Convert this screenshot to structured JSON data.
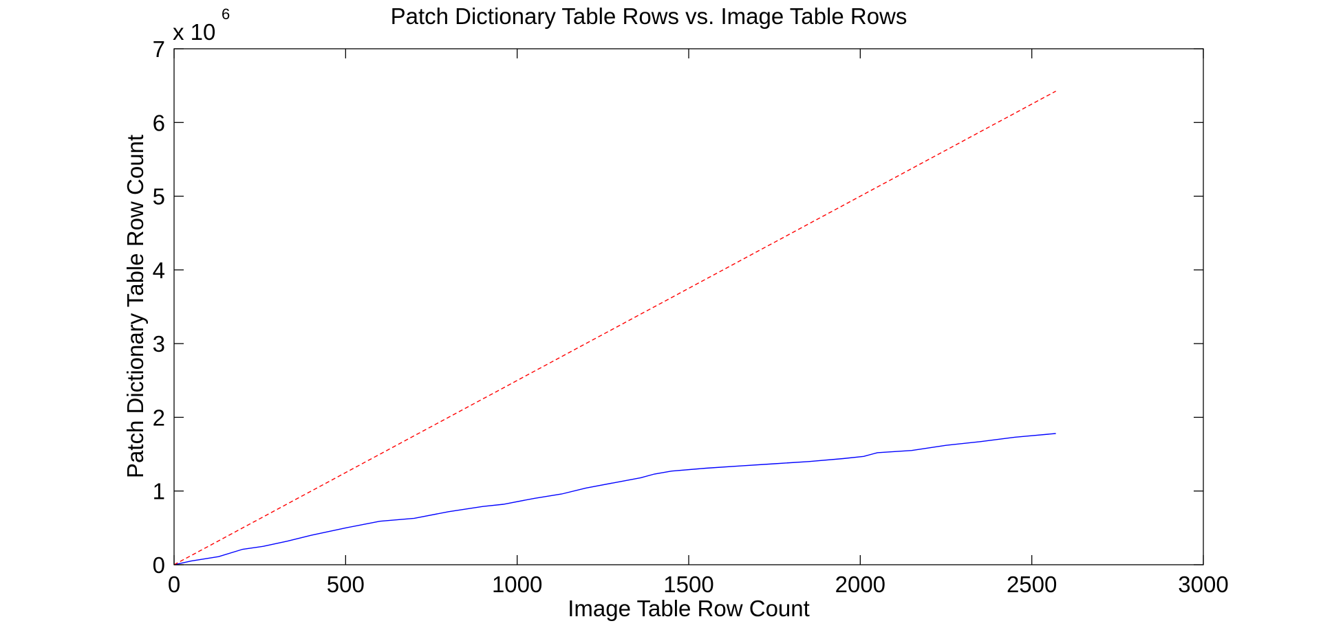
{
  "chart_data": {
    "type": "line",
    "title": "Patch Dictionary Table Rows vs. Image Table Rows",
    "xlabel": "Image Table Row Count",
    "ylabel": "Patch Dictionary Table Row Count",
    "xlim": [
      0,
      3000
    ],
    "ylim": [
      0,
      7000000
    ],
    "xticks": [
      0,
      500,
      1000,
      1500,
      2000,
      2500,
      3000
    ],
    "xtick_labels": [
      "0",
      "500",
      "1000",
      "1500",
      "2000",
      "2500",
      "3000"
    ],
    "yticks": [
      0,
      1000000,
      2000000,
      3000000,
      4000000,
      5000000,
      6000000,
      7000000
    ],
    "ytick_labels": [
      "0",
      "1",
      "2",
      "3",
      "4",
      "5",
      "6",
      "7"
    ],
    "y_multiplier_base": "x 10",
    "y_multiplier_exponent": "6",
    "grid": false,
    "legend": "none",
    "series": [
      {
        "color": "#0000ff",
        "style": "solid",
        "x": [
          0,
          50,
          130,
          200,
          260,
          330,
          400,
          500,
          600,
          700,
          800,
          900,
          960,
          1050,
          1130,
          1200,
          1280,
          1360,
          1400,
          1450,
          1550,
          1650,
          1750,
          1850,
          1950,
          2010,
          2050,
          2150,
          2250,
          2350,
          2450,
          2570
        ],
        "y": [
          0,
          50000,
          110000,
          210000,
          250000,
          320000,
          400000,
          500000,
          590000,
          630000,
          720000,
          790000,
          820000,
          900000,
          960000,
          1040000,
          1110000,
          1180000,
          1230000,
          1270000,
          1310000,
          1340000,
          1370000,
          1400000,
          1440000,
          1470000,
          1520000,
          1550000,
          1620000,
          1670000,
          1730000,
          1780000
        ]
      },
      {
        "color": "#ff0000",
        "style": "dashed",
        "x": [
          0,
          2570
        ],
        "y": [
          0,
          6425000
        ]
      }
    ]
  }
}
